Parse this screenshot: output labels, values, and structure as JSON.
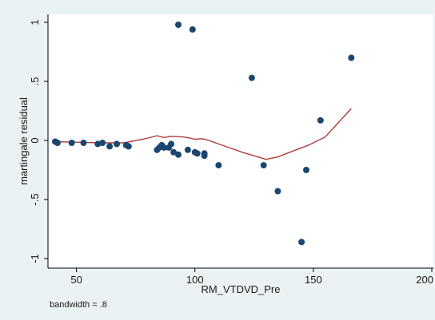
{
  "chart_data": {
    "type": "scatter",
    "xlabel": "RM_VTDVD_Pre",
    "ylabel": "martingale residual",
    "xlim": [
      40,
      200
    ],
    "ylim": [
      -1,
      1
    ],
    "x_ticks": [
      50,
      100,
      150,
      200
    ],
    "y_ticks": [
      1,
      0.5,
      0,
      -0.5,
      -1
    ],
    "x_tick_labels": [
      "50",
      "100",
      "150",
      "200"
    ],
    "y_tick_labels": [
      "1",
      ".5",
      "0",
      "-.5",
      "-1"
    ],
    "note": "bandwidth = .8",
    "grid": false,
    "legend": "none",
    "colors": {
      "background": "#eaf2f3",
      "plot_background": "#ffffff",
      "points": "#1a476f",
      "smoother": "#b03a3a",
      "axis": "#000000"
    },
    "points": [
      {
        "x": 41,
        "y": -0.01
      },
      {
        "x": 42,
        "y": -0.02
      },
      {
        "x": 48,
        "y": -0.02
      },
      {
        "x": 53,
        "y": -0.02
      },
      {
        "x": 59,
        "y": -0.03
      },
      {
        "x": 61,
        "y": -0.02
      },
      {
        "x": 64,
        "y": -0.05
      },
      {
        "x": 67,
        "y": -0.03
      },
      {
        "x": 71,
        "y": -0.04
      },
      {
        "x": 72,
        "y": -0.05
      },
      {
        "x": 84,
        "y": -0.08
      },
      {
        "x": 85,
        "y": -0.06
      },
      {
        "x": 86,
        "y": -0.04
      },
      {
        "x": 87,
        "y": -0.06
      },
      {
        "x": 89,
        "y": -0.06
      },
      {
        "x": 90,
        "y": -0.03
      },
      {
        "x": 91,
        "y": -0.1
      },
      {
        "x": 93,
        "y": 0.98
      },
      {
        "x": 93,
        "y": -0.12
      },
      {
        "x": 97,
        "y": -0.08
      },
      {
        "x": 99,
        "y": 0.94
      },
      {
        "x": 100,
        "y": -0.1
      },
      {
        "x": 101,
        "y": -0.11
      },
      {
        "x": 104,
        "y": -0.11
      },
      {
        "x": 104,
        "y": -0.13
      },
      {
        "x": 110,
        "y": -0.21
      },
      {
        "x": 124,
        "y": 0.53
      },
      {
        "x": 129,
        "y": -0.21
      },
      {
        "x": 135,
        "y": -0.43
      },
      {
        "x": 145,
        "y": -0.86
      },
      {
        "x": 147,
        "y": -0.25
      },
      {
        "x": 153,
        "y": 0.17
      },
      {
        "x": 166,
        "y": 0.7
      }
    ],
    "smoother": {
      "x": [
        40,
        50,
        60,
        70,
        78,
        84,
        87,
        90,
        95,
        98,
        100,
        103,
        106,
        110,
        120,
        130,
        135,
        140,
        148,
        155,
        166
      ],
      "y": [
        -0.01,
        -0.015,
        -0.02,
        -0.02,
        0.01,
        0.04,
        0.025,
        0.035,
        0.03,
        0.02,
        0.01,
        0.015,
        0.0,
        -0.03,
        -0.1,
        -0.16,
        -0.14,
        -0.1,
        -0.04,
        0.03,
        0.27
      ]
    }
  }
}
